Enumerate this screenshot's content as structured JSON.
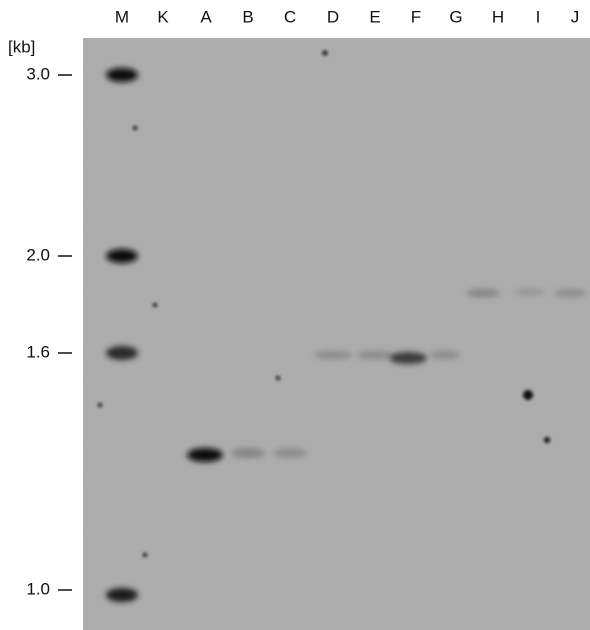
{
  "lanes": [
    "M",
    "K",
    "A",
    "B",
    "C",
    "D",
    "E",
    "F",
    "G",
    "H",
    "I",
    "J"
  ],
  "unit": "[kb]",
  "size_markers": [
    "3.0",
    "2.0",
    "1.6",
    "1.0"
  ]
}
